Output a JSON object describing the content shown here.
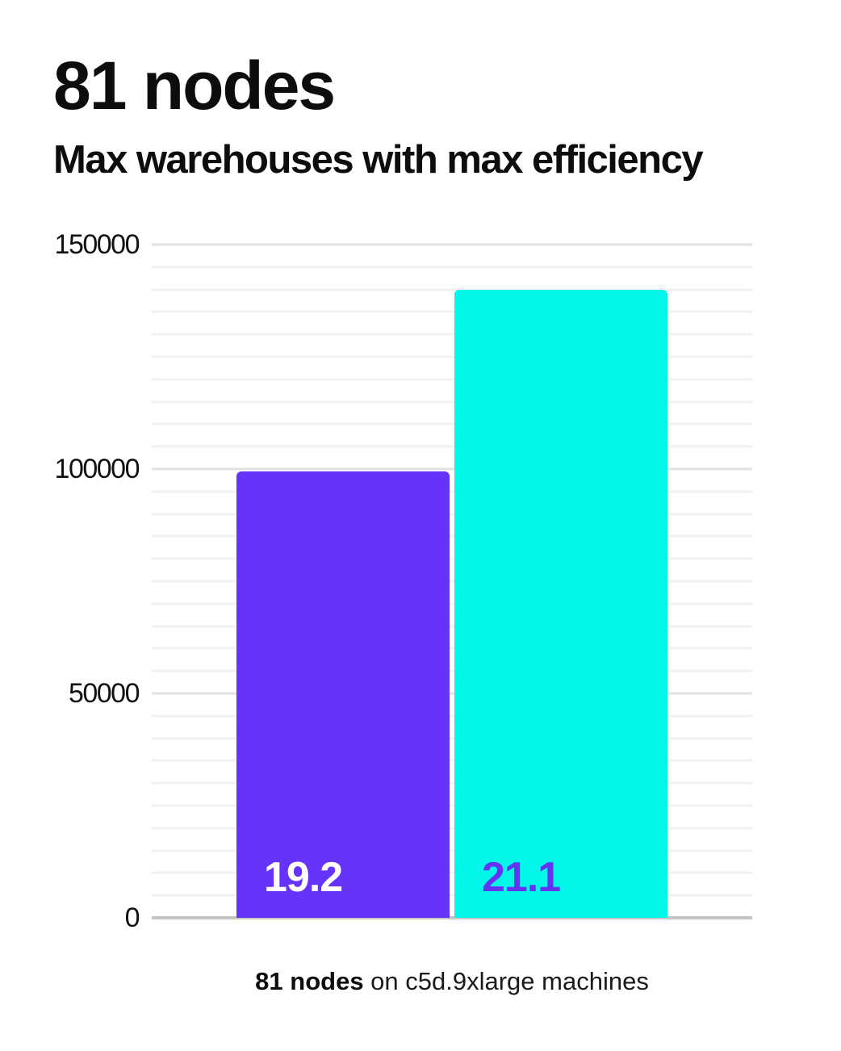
{
  "card": {
    "title": "81 nodes",
    "subtitle": "Max warehouses with max efficiency",
    "caption_bold": "81 nodes",
    "caption_rest": " on c5d.9xlarge machines"
  },
  "colors": {
    "bar_purple": "#6633fb",
    "bar_cyan": "#00f7ea",
    "bar_label_on_purple": "#ffffff",
    "bar_label_on_cyan": "#6633f1",
    "grid_minor": "#f1f1f1",
    "grid_major": "#e2e2e2",
    "axis_line": "#c4c4c4",
    "text": "#0d0d0d"
  },
  "chart_data": {
    "type": "bar",
    "title": "81 nodes",
    "subtitle": "Max warehouses with max efficiency",
    "caption": "81 nodes on c5d.9xlarge machines",
    "categories": [
      "",
      ""
    ],
    "bars": [
      {
        "label": "19.2",
        "value": 99500,
        "color": "#6633fb",
        "label_color": "#ffffff"
      },
      {
        "label": "21.1",
        "value": 140000,
        "color": "#00f7ea",
        "label_color": "#6633f1"
      }
    ],
    "ylim": [
      0,
      150000
    ],
    "yticks": [
      0,
      50000,
      100000,
      150000
    ],
    "ytick_labels": [
      "0",
      "50000",
      "100000",
      "150000"
    ],
    "grid": true,
    "grid_step_minor": 5000,
    "grid_step_major": 50000,
    "legend": false,
    "xlabel": "",
    "ylabel": ""
  }
}
